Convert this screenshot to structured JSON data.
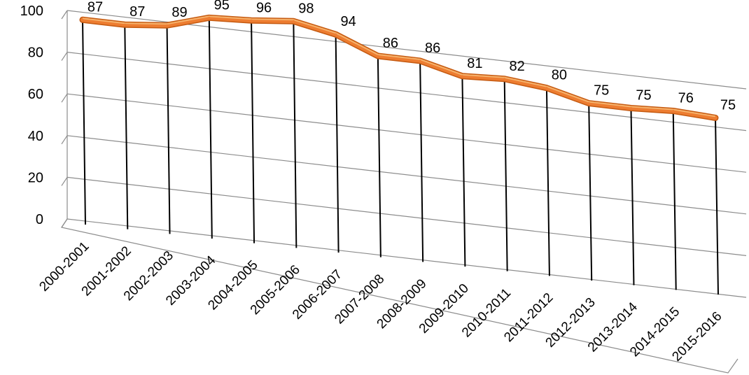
{
  "chart_data": {
    "type": "line",
    "title": "",
    "xlabel": "",
    "ylabel": "",
    "ylim": [
      0,
      100
    ],
    "yticks": [
      0,
      20,
      40,
      60,
      80,
      100
    ],
    "grid": true,
    "legend": "none",
    "style": "3d",
    "categories": [
      "2000-2001",
      "2001-2002",
      "2002-2003",
      "2003-2004",
      "2004-2005",
      "2005-2006",
      "2006-2007",
      "2007-2008",
      "2008-2009",
      "2009-2010",
      "2010-2011",
      "2011-2012",
      "2012-2013",
      "2013-2014",
      "2014-2015",
      "2015-2016"
    ],
    "series": [
      {
        "values": [
          87,
          87,
          89,
          95,
          96,
          98,
          94,
          86,
          86,
          81,
          82,
          80,
          75,
          75,
          76,
          75
        ],
        "color": "#ED7D31",
        "highlight_color": "#F6B26B"
      }
    ],
    "colors": {
      "grid": "#8C8C8C",
      "drop_line": "#000000"
    }
  }
}
